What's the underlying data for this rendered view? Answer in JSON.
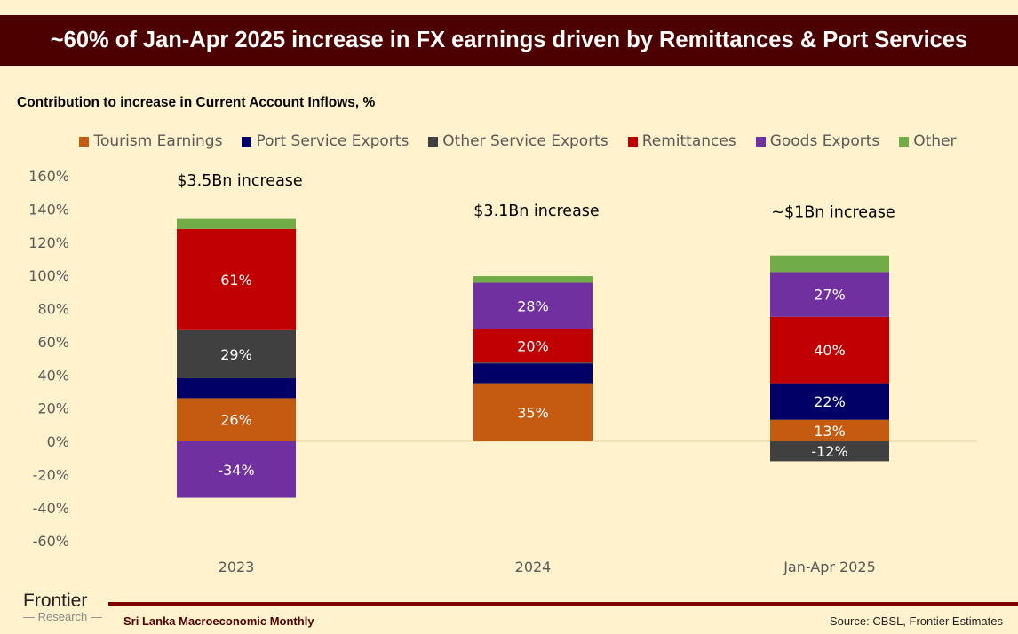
{
  "header": {
    "title": "~60% of Jan-Apr 2025 increase in FX earnings driven by Remittances & Port Services"
  },
  "footer": {
    "logo_line1": "Frontier",
    "logo_line2": "Research",
    "publication": "Sri Lanka Macroeconomic Monthly",
    "source": "Source: CBSL, Frontier Estimates"
  },
  "chart_data": {
    "type": "bar",
    "stacked": true,
    "title": "Contribution to increase in Current Account Inflows, %",
    "xlabel": "",
    "ylabel": "",
    "ylim": [
      -60,
      160
    ],
    "yticks": [
      -60,
      -40,
      -20,
      0,
      20,
      40,
      60,
      80,
      100,
      120,
      140,
      160
    ],
    "ytick_labels": [
      "-60%",
      "-40%",
      "-20%",
      "0%",
      "20%",
      "40%",
      "60%",
      "80%",
      "100%",
      "120%",
      "140%",
      "160%"
    ],
    "legend_position": "top",
    "categories": [
      "2023",
      "2024",
      "Jan-Apr 2025"
    ],
    "annotations": [
      "$3.5Bn increase",
      "$3.1Bn increase",
      "~$1Bn increase"
    ],
    "series": [
      {
        "name": "Tourism Earnings",
        "color": "#c55a11",
        "values": [
          26,
          35,
          13
        ],
        "labels": [
          "26%",
          "35%",
          "13%"
        ]
      },
      {
        "name": "Port Service Exports",
        "color": "#000066",
        "values": [
          12,
          12,
          22
        ],
        "labels": [
          "",
          "",
          "22%"
        ]
      },
      {
        "name": "Other Service Exports",
        "color": "#404040",
        "values": [
          29,
          0.5,
          -12
        ],
        "labels": [
          "29%",
          "",
          "-12%"
        ]
      },
      {
        "name": "Remittances",
        "color": "#c00000",
        "values": [
          61,
          20,
          40
        ],
        "labels": [
          "61%",
          "20%",
          "40%"
        ]
      },
      {
        "name": "Goods Exports",
        "color": "#7030a0",
        "values": [
          -34,
          28,
          27
        ],
        "labels": [
          "-34%",
          "28%",
          "27%"
        ]
      },
      {
        "name": "Other",
        "color": "#70ad47",
        "values": [
          6,
          4,
          10
        ],
        "labels": [
          "",
          "",
          ""
        ]
      }
    ]
  }
}
